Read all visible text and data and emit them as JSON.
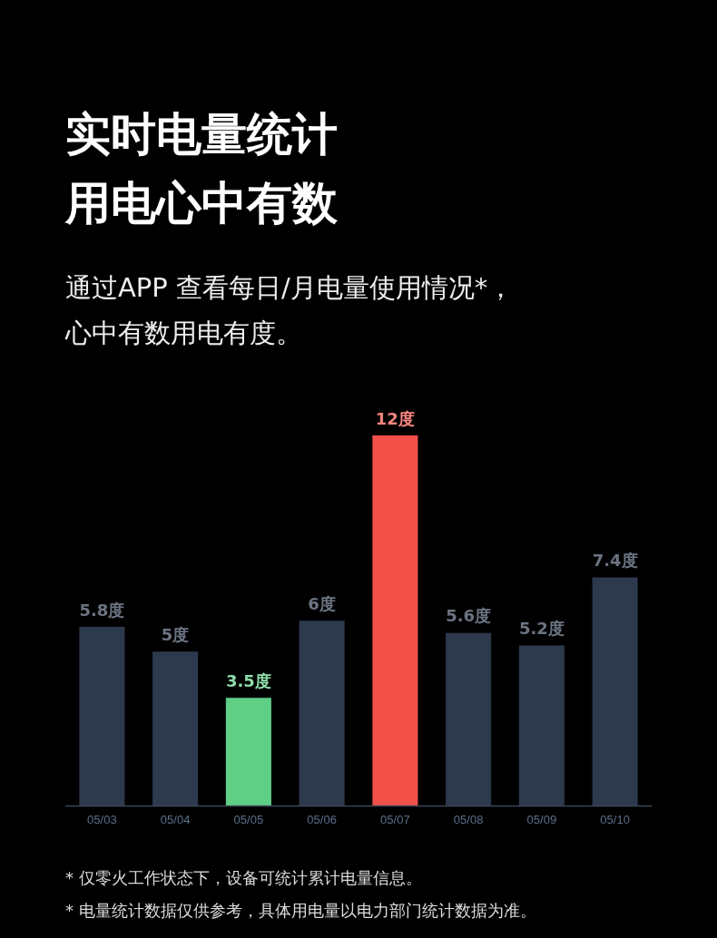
{
  "chart_data": {
    "type": "bar",
    "title": "实时电量统计用电心中有数",
    "subtitle": "通过APP 查看每日/月电量使用情况*，心中有数用电有度。",
    "categories": [
      "05/03",
      "05/04",
      "05/05",
      "05/06",
      "05/07",
      "05/08",
      "05/09",
      "05/10"
    ],
    "values": [
      5.8,
      5,
      3.5,
      6,
      12,
      5.6,
      5.2,
      7.4
    ],
    "colors": [
      "#2d394d",
      "#2d394d",
      "#5fcf86",
      "#2d394d",
      "#f2514a",
      "#2d394d",
      "#2d394d",
      "#2d394d"
    ],
    "value_labels": [
      "5.8度",
      "5度",
      "3.5度",
      "6度",
      "12度",
      "5.6度",
      "5.2度",
      "7.4度"
    ],
    "annotations": [
      "* 仅零火工作状态下，设备可统计累计电量信息。",
      "* 电量统计数据仅供参考，具体用电量以电力部门统计数据为准。"
    ],
    "legend": false
  }
}
